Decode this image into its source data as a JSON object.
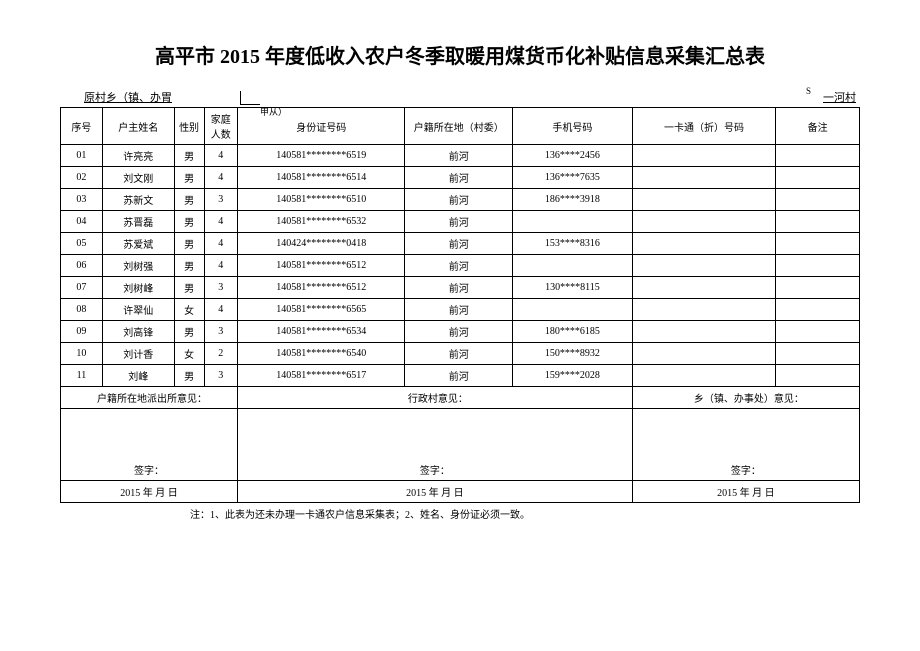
{
  "title": "高平市 2015 年度低收入农户冬季取暖用煤货币化补贴信息采集汇总表",
  "header": {
    "left": "原村乡（镇、办胃",
    "midsmall": "甲从）",
    "right_s": "S",
    "right": "一河村"
  },
  "columns": {
    "seq": "序号",
    "name": "户主姓名",
    "gender": "性别",
    "family": "家庭人数",
    "id": "身份证号码",
    "addr": "户籍所在地（村委）",
    "phone": "手机号码",
    "card": "一卡通（折）号码",
    "remark": "备注"
  },
  "rows": [
    {
      "seq": "01",
      "name": "许亮亮",
      "gender": "男",
      "family": "4",
      "id": "140581********6519",
      "addr": "前河",
      "phone": "136****2456",
      "card": "",
      "remark": ""
    },
    {
      "seq": "02",
      "name": "刘文刚",
      "gender": "男",
      "family": "4",
      "id": "140581********6514",
      "addr": "前河",
      "phone": "136****7635",
      "card": "",
      "remark": ""
    },
    {
      "seq": "03",
      "name": "苏新文",
      "gender": "男",
      "family": "3",
      "id": "140581********6510",
      "addr": "前河",
      "phone": "186****3918",
      "card": "",
      "remark": ""
    },
    {
      "seq": "04",
      "name": "苏晋磊",
      "gender": "男",
      "family": "4",
      "id": "140581********6532",
      "addr": "前河",
      "phone": "",
      "card": "",
      "remark": ""
    },
    {
      "seq": "05",
      "name": "苏爱斌",
      "gender": "男",
      "family": "4",
      "id": "140424********0418",
      "addr": "前河",
      "phone": "153****8316",
      "card": "",
      "remark": ""
    },
    {
      "seq": "06",
      "name": "刘树强",
      "gender": "男",
      "family": "4",
      "id": "140581********6512",
      "addr": "前河",
      "phone": "",
      "card": "",
      "remark": ""
    },
    {
      "seq": "07",
      "name": "刘树峰",
      "gender": "男",
      "family": "3",
      "id": "140581********6512",
      "addr": "前河",
      "phone": "130****8115",
      "card": "",
      "remark": ""
    },
    {
      "seq": "08",
      "name": "许翠仙",
      "gender": "女",
      "family": "4",
      "id": "140581********6565",
      "addr": "前河",
      "phone": "",
      "card": "",
      "remark": ""
    },
    {
      "seq": "09",
      "name": "刘高锋",
      "gender": "男",
      "family": "3",
      "id": "140581********6534",
      "addr": "前河",
      "phone": "180****6185",
      "card": "",
      "remark": ""
    },
    {
      "seq": "10",
      "name": "刘计香",
      "gender": "女",
      "family": "2",
      "id": "140581********6540",
      "addr": "前河",
      "phone": "150****8932",
      "card": "",
      "remark": ""
    },
    {
      "seq": "11",
      "name": "刘峰",
      "gender": "男",
      "family": "3",
      "id": "140581********6517",
      "addr": "前河",
      "phone": "159****2028",
      "card": "",
      "remark": ""
    }
  ],
  "sig": {
    "col1_title": "户籍所在地派出所意见：",
    "col2_title": "行政村意见：",
    "col3_title": "乡（镇、办事处）意见：",
    "sign_label": "签字：",
    "date": "2015 年 月 日"
  },
  "footnote": "注：1、此表为还未办理一卡通农户信息采集表；2、姓名、身份证必须一致。"
}
